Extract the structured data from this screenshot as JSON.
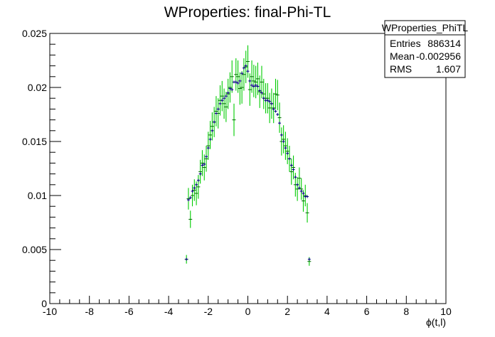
{
  "chart_data": {
    "type": "scatter",
    "title": "WProperties: final-Phi-TL",
    "xlabel": "ϕ(t,l)",
    "ylabel": "",
    "xlim": [
      -10,
      10
    ],
    "ylim": [
      0,
      0.025
    ],
    "x_ticks": [
      -10,
      -8,
      -6,
      -4,
      -2,
      0,
      2,
      4,
      6,
      8,
      10
    ],
    "x_tick_labels": [
      "-10",
      "-8",
      "-6",
      "-4",
      "-2",
      "0",
      "2",
      "4",
      "6",
      "8",
      "10"
    ],
    "y_ticks": [
      0,
      0.005,
      0.01,
      0.015,
      0.02,
      0.025
    ],
    "y_tick_labels": [
      "0",
      "0.005",
      "0.01",
      "0.015",
      "0.02",
      "0.025"
    ],
    "grid": false,
    "stats_box": {
      "name": "WProperties_PhiTL",
      "rows": [
        {
          "label": "Entries",
          "value": "886314"
        },
        {
          "label": "Mean",
          "value": "-0.002956"
        },
        {
          "label": "RMS",
          "value": "1.607"
        }
      ]
    },
    "series": [
      {
        "style": "crosses",
        "color": "#000080",
        "x": [
          -3.1,
          -3.0,
          -2.9,
          -2.8,
          -2.7,
          -2.6,
          -2.5,
          -2.4,
          -2.3,
          -2.2,
          -2.1,
          -2.0,
          -1.9,
          -1.8,
          -1.7,
          -1.6,
          -1.5,
          -1.4,
          -1.3,
          -1.2,
          -1.1,
          -1.0,
          -0.9,
          -0.8,
          -0.7,
          -0.6,
          -0.5,
          -0.4,
          -0.3,
          -0.2,
          -0.1,
          0.0,
          0.1,
          0.2,
          0.3,
          0.4,
          0.5,
          0.6,
          0.7,
          0.8,
          0.9,
          1.0,
          1.1,
          1.2,
          1.3,
          1.4,
          1.5,
          1.6,
          1.7,
          1.8,
          1.9,
          2.0,
          2.1,
          2.2,
          2.3,
          2.4,
          2.5,
          2.6,
          2.7,
          2.8,
          2.9,
          3.0,
          3.1
        ],
        "y": [
          0.0041,
          0.0096,
          0.0098,
          0.0104,
          0.0107,
          0.011,
          0.0114,
          0.012,
          0.0128,
          0.0129,
          0.0136,
          0.0144,
          0.0152,
          0.016,
          0.0168,
          0.0176,
          0.018,
          0.0185,
          0.0188,
          0.019,
          0.0192,
          0.0195,
          0.0199,
          0.0198,
          0.0205,
          0.0205,
          0.0204,
          0.0206,
          0.0213,
          0.0218,
          0.022,
          0.0215,
          0.0206,
          0.0202,
          0.0201,
          0.0202,
          0.0201,
          0.0197,
          0.0195,
          0.019,
          0.0188,
          0.0188,
          0.0187,
          0.0185,
          0.018,
          0.0178,
          0.0175,
          0.0167,
          0.0156,
          0.015,
          0.0144,
          0.0139,
          0.0134,
          0.0128,
          0.0124,
          0.0117,
          0.011,
          0.0107,
          0.0104,
          0.0102,
          0.0099,
          0.0099,
          0.0041
        ]
      },
      {
        "style": "errorbars",
        "color": "#00cc00",
        "x": [
          -3.1,
          -3.0,
          -2.9,
          -2.8,
          -2.7,
          -2.6,
          -2.5,
          -2.4,
          -2.3,
          -2.2,
          -2.1,
          -2.0,
          -1.9,
          -1.8,
          -1.7,
          -1.6,
          -1.5,
          -1.4,
          -1.3,
          -1.2,
          -1.1,
          -1.0,
          -0.9,
          -0.8,
          -0.7,
          -0.6,
          -0.5,
          -0.4,
          -0.3,
          -0.2,
          -0.1,
          0.0,
          0.1,
          0.2,
          0.3,
          0.4,
          0.5,
          0.6,
          0.7,
          0.8,
          0.9,
          1.0,
          1.1,
          1.2,
          1.3,
          1.4,
          1.5,
          1.6,
          1.7,
          1.8,
          1.9,
          2.0,
          2.1,
          2.2,
          2.3,
          2.4,
          2.5,
          2.6,
          2.7,
          2.8,
          2.9,
          3.0,
          3.1
        ],
        "y": [
          0.0041,
          0.0097,
          0.0078,
          0.01,
          0.0105,
          0.0102,
          0.0108,
          0.0122,
          0.013,
          0.0126,
          0.0134,
          0.0146,
          0.0156,
          0.0164,
          0.0168,
          0.0178,
          0.0176,
          0.0188,
          0.0192,
          0.0185,
          0.0182,
          0.0194,
          0.02,
          0.021,
          0.017,
          0.0212,
          0.021,
          0.0199,
          0.02,
          0.0212,
          0.0219,
          0.0224,
          0.0198,
          0.021,
          0.0206,
          0.0205,
          0.0208,
          0.0196,
          0.0205,
          0.0194,
          0.019,
          0.019,
          0.0181,
          0.0185,
          0.0181,
          0.0194,
          0.0193,
          0.0172,
          0.015,
          0.0152,
          0.0146,
          0.0141,
          0.0134,
          0.0122,
          0.0126,
          0.011,
          0.0106,
          0.0116,
          0.0106,
          0.0095,
          0.01,
          0.0084,
          0.0039
        ],
        "err": [
          0.0004,
          0.001,
          0.0008,
          0.001,
          0.001,
          0.0011,
          0.0011,
          0.0011,
          0.0012,
          0.0012,
          0.0012,
          0.0013,
          0.0013,
          0.0013,
          0.0014,
          0.0014,
          0.0014,
          0.0014,
          0.0014,
          0.0014,
          0.0014,
          0.0014,
          0.0014,
          0.0015,
          0.0015,
          0.0015,
          0.0015,
          0.0015,
          0.0015,
          0.0015,
          0.0015,
          0.0015,
          0.0015,
          0.0015,
          0.0015,
          0.0015,
          0.0015,
          0.0015,
          0.0015,
          0.0014,
          0.0014,
          0.0014,
          0.0014,
          0.0014,
          0.0014,
          0.0014,
          0.0014,
          0.0014,
          0.0013,
          0.0013,
          0.0013,
          0.0012,
          0.0012,
          0.0012,
          0.0011,
          0.0011,
          0.0011,
          0.001,
          0.001,
          0.001,
          0.001,
          0.0009,
          0.0004
        ]
      }
    ]
  }
}
